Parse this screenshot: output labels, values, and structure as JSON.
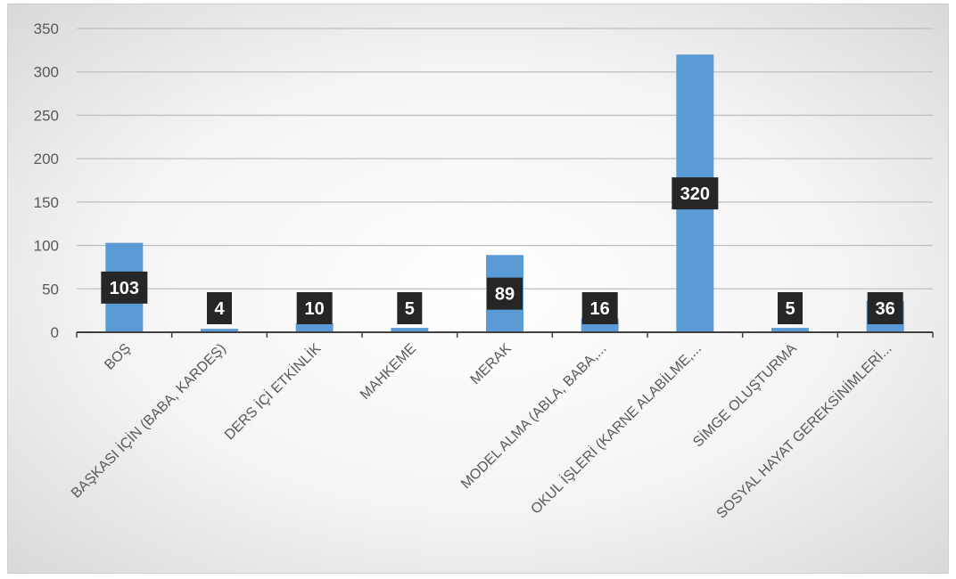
{
  "chart_data": {
    "type": "bar",
    "categories": [
      "BOŞ",
      "BAŞKASI İÇİN (BABA, KARDEŞ)",
      "DERS İÇİ ETKİNLİK",
      "MAHKEME",
      "MERAK",
      "MODEL ALMA (ABLA, BABA,...",
      "OKUL İŞLERİ (KARNE ALABİLME,...",
      "SİMGE OLUŞTURMA",
      "SOSYAL HAYAT GEREKSİNİMLERİ..."
    ],
    "values": [
      103,
      4,
      10,
      5,
      89,
      16,
      320,
      5,
      36
    ],
    "data_labels": [
      "103",
      "4",
      "10",
      "5",
      "89",
      "16",
      "320",
      "5",
      "36"
    ],
    "yticks": [
      "0",
      "50",
      "100",
      "150",
      "200",
      "250",
      "300",
      "350"
    ],
    "ylim": [
      0,
      350
    ],
    "grid": true,
    "legend": "none",
    "colors": {
      "bar": "#5b9bd5",
      "label_bg": "#262626",
      "grid": "#bfbfbf"
    }
  }
}
